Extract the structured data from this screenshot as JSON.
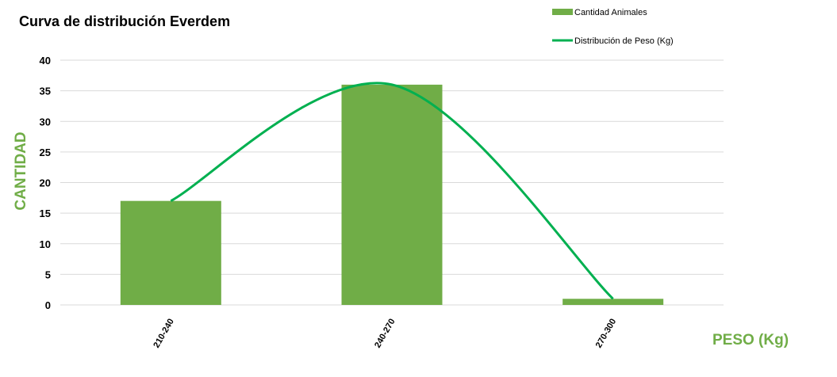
{
  "chart_data": {
    "type": "bar",
    "title": "Curva de distribución Everdem",
    "xlabel": "PESO (Kg)",
    "ylabel": "CANTIDAD",
    "categories": [
      "210-240",
      "240-270",
      "270-300"
    ],
    "ylim": [
      0,
      40
    ],
    "yticks": [
      0,
      5,
      10,
      15,
      20,
      25,
      30,
      35,
      40
    ],
    "grid": true,
    "legend_position": "top-right",
    "series": [
      {
        "name": "Cantidad Animales",
        "kind": "bar",
        "values": [
          17,
          36,
          1
        ],
        "color": "#70AD47"
      },
      {
        "name": "Distribución de Peso (Kg)",
        "kind": "smooth-line",
        "values": [
          17,
          36,
          1
        ],
        "color": "#00B050"
      }
    ],
    "label_color": "#70AD47"
  }
}
